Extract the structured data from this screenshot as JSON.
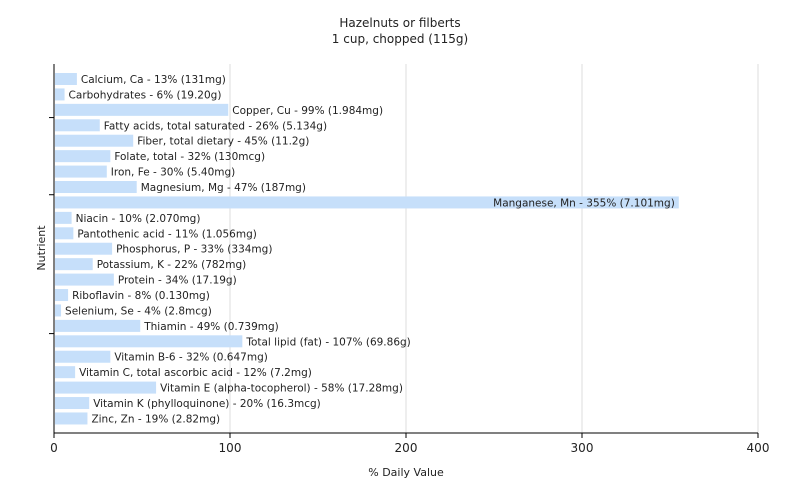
{
  "chart_data": {
    "type": "bar",
    "orientation": "horizontal",
    "title": "Hazelnuts or filberts",
    "subtitle": "1 cup, chopped (115g)",
    "xlabel": "% Daily Value",
    "ylabel": "Nutrient",
    "xlim": [
      0,
      400
    ],
    "xticks": [
      0,
      100,
      200,
      300,
      400
    ],
    "grid": true,
    "bar_color": "#c6dffa",
    "categories": [
      "Calcium, Ca",
      "Carbohydrates",
      "Copper, Cu",
      "Fatty acids, total saturated",
      "Fiber, total dietary",
      "Folate, total",
      "Iron, Fe",
      "Magnesium, Mg",
      "Manganese, Mn",
      "Niacin",
      "Pantothenic acid",
      "Phosphorus, P",
      "Potassium, K",
      "Protein",
      "Riboflavin",
      "Selenium, Se",
      "Thiamin",
      "Total lipid (fat)",
      "Vitamin B-6",
      "Vitamin C, total ascorbic acid",
      "Vitamin E (alpha-tocopherol)",
      "Vitamin K (phylloquinone)",
      "Zinc, Zn"
    ],
    "values": [
      13,
      6,
      99,
      26,
      45,
      32,
      30,
      47,
      355,
      10,
      11,
      33,
      22,
      34,
      8,
      4,
      49,
      107,
      32,
      12,
      58,
      20,
      19
    ],
    "labels": [
      "Calcium, Ca - 13% (131mg)",
      "Carbohydrates - 6% (19.20g)",
      "Copper, Cu - 99% (1.984mg)",
      "Fatty acids, total saturated - 26% (5.134g)",
      "Fiber, total dietary - 45% (11.2g)",
      "Folate, total - 32% (130mcg)",
      "Iron, Fe - 30% (5.40mg)",
      "Magnesium, Mg - 47% (187mg)",
      "Manganese, Mn - 355% (7.101mg)",
      "Niacin - 10% (2.070mg)",
      "Pantothenic acid - 11% (1.056mg)",
      "Phosphorus, P - 33% (334mg)",
      "Potassium, K - 22% (782mg)",
      "Protein - 34% (17.19g)",
      "Riboflavin - 8% (0.130mg)",
      "Selenium, Se - 4% (2.8mcg)",
      "Thiamin - 49% (0.739mg)",
      "Total lipid (fat) - 107% (69.86g)",
      "Vitamin B-6 - 32% (0.647mg)",
      "Vitamin C, total ascorbic acid - 12% (7.2mg)",
      "Vitamin E (alpha-tocopherol) - 58% (17.28mg)",
      "Vitamin K (phylloquinone) - 20% (16.3mcg)",
      "Zinc, Zn - 19% (2.82mg)"
    ]
  }
}
